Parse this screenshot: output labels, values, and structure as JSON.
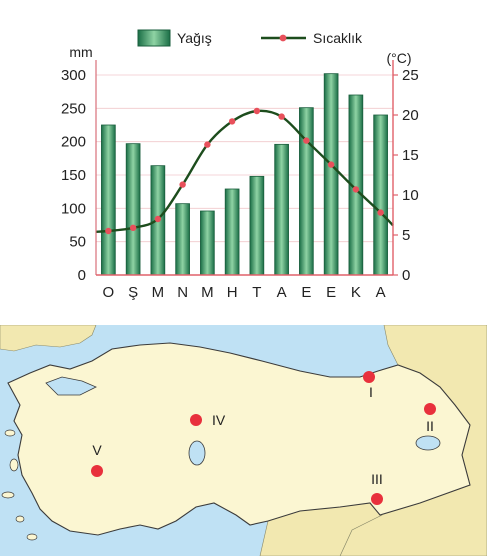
{
  "chart_data": {
    "type": "bar+line",
    "categories": [
      "O",
      "Ş",
      "M",
      "N",
      "M",
      "H",
      "T",
      "A",
      "E",
      "E",
      "K",
      "A"
    ],
    "series": [
      {
        "name": "Yağış",
        "type": "bar",
        "axis": "left",
        "values": [
          225,
          197,
          164,
          107,
          96,
          129,
          148,
          196,
          251,
          302,
          270,
          240
        ]
      },
      {
        "name": "Sıcaklık",
        "type": "line",
        "axis": "right",
        "values": [
          5.5,
          5.9,
          7.0,
          11.3,
          16.3,
          19.2,
          20.5,
          19.8,
          16.8,
          13.8,
          10.7,
          7.8
        ]
      }
    ],
    "ylabel_left": "mm",
    "ylabel_right": "(°C)",
    "ylim_left": [
      0,
      300
    ],
    "ylim_right": [
      0,
      25
    ],
    "yticks_left": [
      "0",
      "50",
      "100",
      "150",
      "200",
      "250",
      "300"
    ],
    "yticks_right": [
      "0",
      "5",
      "10",
      "15",
      "20",
      "25"
    ],
    "legend_position": "top",
    "colors": {
      "bar_dark": "#1a6e46",
      "bar_light": "#8fd3a4",
      "line": "#1d4d1d",
      "marker": "#e8505b",
      "axis_right": "#e0606a"
    }
  },
  "map": {
    "markers": [
      {
        "label": "I"
      },
      {
        "label": "II"
      },
      {
        "label": "III"
      },
      {
        "label": "IV"
      },
      {
        "label": "V"
      }
    ],
    "colors": {
      "land": "#fbf6d2",
      "neighbor": "#f2e8b0",
      "sea": "#bfe1f4",
      "coast": "#3b3b3b",
      "marker": "#e8303c"
    }
  }
}
